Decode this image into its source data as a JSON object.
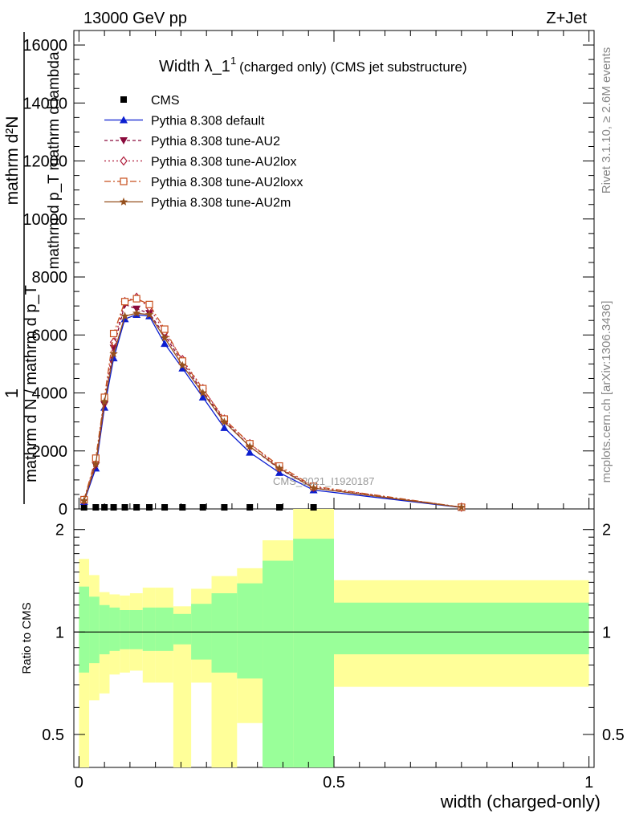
{
  "header": {
    "left": "13000 GeV pp",
    "right": "Z+Jet"
  },
  "title": {
    "main": "Width λ_1",
    "sup": "1",
    "sub": "(charged only) (CMS jet substructure)"
  },
  "side_labels": {
    "rivet": "Rivet 3.1.10, ≥ 2.6M events",
    "mcplots": "mcplots.cern.ch [arXiv:1306.3436]"
  },
  "watermark": "CMS_2021_I1920187",
  "ylabel_main": {
    "numerator": "1",
    "numerator2": "mathrm d²N",
    "denominator": "mathrm d N / mathrm d p_T",
    "denominator2": "mathrm d p_T mathrm d lambda"
  },
  "ylabel_ratio": "Ratio to CMS",
  "xlabel": "width (charged-only)",
  "colors": {
    "default": "#0b1ed0",
    "au2": "#8a0a3c",
    "au2lox": "#b01e3c",
    "au2loxx": "#c8501e",
    "au2m": "#96501e",
    "band_inner": "#99ff99",
    "band_outer": "#ffff99"
  },
  "chart_data": [
    {
      "type": "line",
      "title": "Width λ_1 1 (charged only) (CMS jet substructure)",
      "xlabel": "width (charged-only)",
      "ylabel": "1 / (mathrm d N / mathrm d p_T) · mathrm d²N / (mathrm d p_T mathrm d lambda)",
      "xlim": [
        -0.01,
        1.01
      ],
      "ylim": [
        0,
        16500
      ],
      "xticks": [
        "0",
        "0.5",
        "1"
      ],
      "yticks": [
        "0",
        "2000",
        "4000",
        "6000",
        "8000",
        "10000",
        "12000",
        "14000",
        "16000"
      ],
      "legend_position": "top-left",
      "x": [
        0.01,
        0.033,
        0.05,
        0.068,
        0.09,
        0.113,
        0.138,
        0.168,
        0.203,
        0.243,
        0.285,
        0.335,
        0.393,
        0.46,
        0.75
      ],
      "series": [
        {
          "name": "CMS",
          "marker": "square",
          "values": [
            55,
            55,
            55,
            55,
            55,
            55,
            55,
            55,
            55,
            55,
            55,
            55,
            55,
            55,
            55
          ]
        },
        {
          "name": "Pythia 8.308 default",
          "marker": "triangle-up",
          "values": [
            250,
            1400,
            3500,
            5200,
            6550,
            6700,
            6650,
            5700,
            4850,
            3850,
            2800,
            1950,
            1250,
            650,
            50
          ]
        },
        {
          "name": "Pythia 8.308 tune-AU2",
          "marker": "triangle-down",
          "values": [
            270,
            1500,
            3600,
            5550,
            7050,
            6900,
            6750,
            6000,
            5050,
            4050,
            3050,
            2150,
            1380,
            720,
            55
          ]
        },
        {
          "name": "Pythia 8.308 tune-AU2lox",
          "marker": "diamond",
          "values": [
            300,
            1650,
            3800,
            5750,
            7150,
            7300,
            6950,
            6100,
            5150,
            4150,
            3100,
            2250,
            1420,
            760,
            60
          ]
        },
        {
          "name": "Pythia 8.308 tune-AU2loxx",
          "marker": "square-open",
          "values": [
            320,
            1750,
            3850,
            6050,
            7150,
            7250,
            7050,
            6200,
            5100,
            4150,
            3100,
            2250,
            1480,
            780,
            60
          ]
        },
        {
          "name": "Pythia 8.308 tune-AU2m",
          "marker": "star",
          "values": [
            280,
            1550,
            3700,
            5350,
            6650,
            6750,
            6700,
            5900,
            4950,
            4000,
            3000,
            2150,
            1400,
            720,
            55
          ]
        }
      ]
    },
    {
      "type": "area",
      "title": "",
      "xlabel": "width (charged-only)",
      "ylabel": "Ratio to CMS",
      "xlim": [
        -0.01,
        1.01
      ],
      "ylim": [
        0.4,
        2.3
      ],
      "yscale": "log",
      "xticks": [
        "0",
        "0.5",
        "1"
      ],
      "yticks": [
        "0.5",
        "1",
        "2"
      ],
      "reference_line": 1.0,
      "bins": [
        0,
        0.02,
        0.04,
        0.06,
        0.08,
        0.1,
        0.125,
        0.15,
        0.185,
        0.22,
        0.26,
        0.31,
        0.36,
        0.42,
        0.5,
        1.0
      ],
      "series": [
        {
          "name": "inner",
          "low": [
            0.76,
            0.81,
            0.86,
            0.88,
            0.89,
            0.89,
            0.88,
            0.88,
            0.92,
            0.83,
            0.76,
            0.73,
            0.36,
            0.3,
            0.86
          ],
          "high": [
            1.36,
            1.27,
            1.2,
            1.18,
            1.16,
            1.16,
            1.18,
            1.18,
            1.13,
            1.21,
            1.3,
            1.39,
            1.62,
            1.88,
            1.22
          ]
        },
        {
          "name": "outer",
          "low": [
            0.39,
            0.63,
            0.66,
            0.75,
            0.76,
            0.77,
            0.71,
            0.71,
            0.0,
            0.71,
            0.4,
            0.54,
            0.3,
            0.3,
            0.69
          ],
          "high": [
            1.64,
            1.47,
            1.31,
            1.29,
            1.28,
            1.3,
            1.35,
            1.35,
            1.19,
            1.34,
            1.46,
            1.54,
            1.86,
            2.5,
            1.42
          ]
        }
      ]
    }
  ]
}
